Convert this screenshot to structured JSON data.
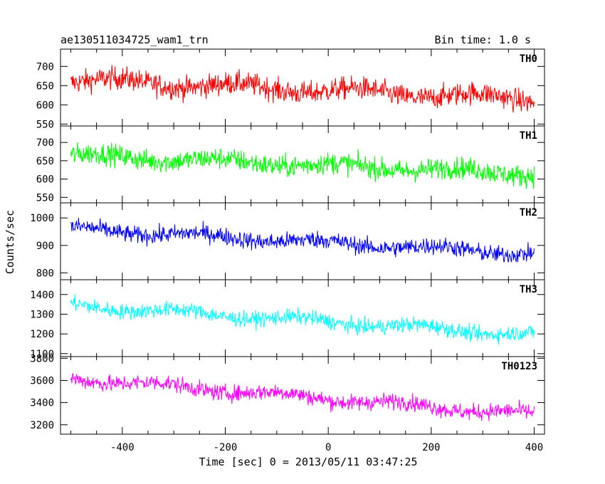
{
  "chart_data": {
    "type": "line",
    "title": "ae130511034725_wam1_trn",
    "bin_label": "Bin time: 1.0 s",
    "xlabel": "Time [sec] 0 = 2013/05/11 03:47:25",
    "ylabel": "Counts/sec",
    "xlim": [
      -520,
      420
    ],
    "x_range": [
      -500,
      400
    ],
    "xticks": [
      -400,
      -200,
      0,
      200,
      400
    ],
    "grid": false,
    "panels": [
      {
        "name": "TH0",
        "color": "#ff0000",
        "ylim": [
          545,
          745
        ],
        "yticks": [
          550,
          600,
          650,
          700
        ],
        "start": 665,
        "end": 615,
        "noise": 30,
        "bump_amp": 10
      },
      {
        "name": "TH1",
        "color": "#00ff00",
        "ylim": [
          535,
          745
        ],
        "yticks": [
          550,
          600,
          650,
          700
        ],
        "start": 665,
        "end": 615,
        "noise": 30,
        "bump_amp": 8
      },
      {
        "name": "TH2",
        "color": "#0000ff",
        "ylim": [
          775,
          1055
        ],
        "yticks": [
          800,
          900,
          1000
        ],
        "start": 960,
        "end": 870,
        "noise": 32,
        "bump_amp": 10
      },
      {
        "name": "TH3",
        "color": "#00ffff",
        "ylim": [
          1085,
          1475
        ],
        "yticks": [
          1100,
          1200,
          1300,
          1400
        ],
        "start": 1345,
        "end": 1195,
        "noise": 40,
        "bump_amp": 15
      },
      {
        "name": "TH0123",
        "color": "#ff00ff",
        "ylim": [
          3115,
          3815
        ],
        "yticks": [
          3200,
          3400,
          3600,
          3800
        ],
        "start": 3620,
        "end": 3290,
        "noise": 75,
        "bump_amp": 25
      }
    ]
  }
}
